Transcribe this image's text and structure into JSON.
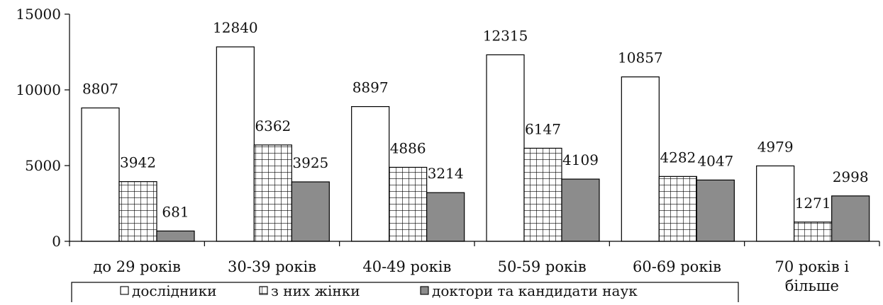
{
  "chart_data": {
    "type": "bar",
    "title": "",
    "xlabel": "",
    "ylabel": "",
    "ylim": [
      0,
      15000
    ],
    "yticks": [
      0,
      5000,
      10000,
      15000
    ],
    "grid": false,
    "legend_position": "bottom",
    "categories": [
      "до 29 років",
      "30-39 років",
      "40-49 років",
      "50-59 років",
      "60-69 років",
      "70 років і більше"
    ],
    "category_lines": [
      [
        "до 29 років"
      ],
      [
        "30-39 років"
      ],
      [
        "40-49 років"
      ],
      [
        "50-59 років"
      ],
      [
        "60-69 років"
      ],
      [
        "70 років і",
        "більше"
      ]
    ],
    "series": [
      {
        "name": "дослідники",
        "values": [
          8807,
          12840,
          8897,
          12315,
          10857,
          4979
        ],
        "fill": "#ffffff",
        "pattern": "none"
      },
      {
        "name": "з них жінки",
        "values": [
          3942,
          6362,
          4886,
          6147,
          4282,
          1271
        ],
        "fill": "#ffffff",
        "pattern": "grid"
      },
      {
        "name": "доктори та кандидати наук",
        "values": [
          681,
          3925,
          3214,
          4109,
          4047,
          2998
        ],
        "fill": "#8c8c8c",
        "pattern": "none"
      }
    ]
  }
}
